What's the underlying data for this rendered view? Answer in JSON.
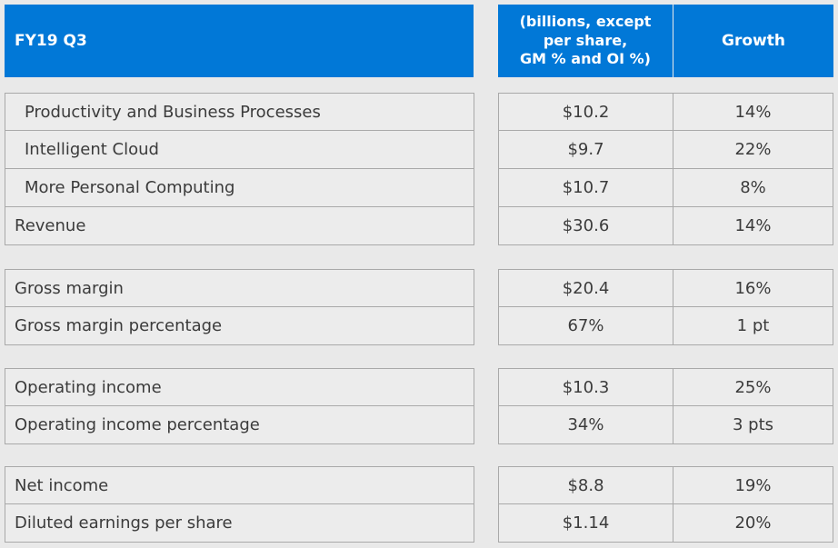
{
  "header": {
    "label": "FY19 Q3",
    "value_col": "(billions, except\nper share,\nGM % and OI %)",
    "growth_col": "Growth"
  },
  "groups": [
    {
      "rows": [
        {
          "label": "Productivity and Business Processes",
          "value": "$10.2",
          "growth": "14%",
          "indent": true
        },
        {
          "label": "Intelligent Cloud",
          "value": "$9.7",
          "growth": "22%",
          "indent": true
        },
        {
          "label": "More Personal Computing",
          "value": "$10.7",
          "growth": "8%",
          "indent": true
        },
        {
          "label": "Revenue",
          "value": "$30.6",
          "growth": "14%",
          "indent": false
        }
      ]
    },
    {
      "rows": [
        {
          "label": "Gross margin",
          "value": "$20.4",
          "growth": "16%",
          "indent": false
        },
        {
          "label": "Gross margin percentage",
          "value": "67%",
          "growth": "1 pt",
          "indent": false
        }
      ]
    },
    {
      "rows": [
        {
          "label": "Operating income",
          "value": "$10.3",
          "growth": "25%",
          "indent": false
        },
        {
          "label": "Operating income percentage",
          "value": "34%",
          "growth": "3 pts",
          "indent": false
        }
      ]
    },
    {
      "rows": [
        {
          "label": "Net income",
          "value": "$8.8",
          "growth": "19%",
          "indent": false
        },
        {
          "label": "Diluted earnings per share",
          "value": "$1.14",
          "growth": "20%",
          "indent": false
        }
      ]
    }
  ]
}
